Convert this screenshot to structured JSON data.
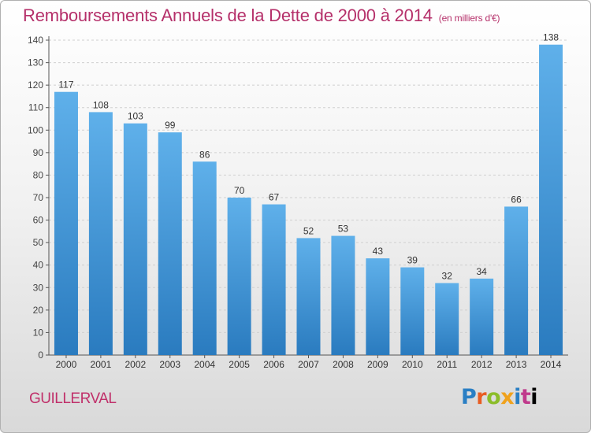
{
  "header": {
    "title": "Remboursements Annuels de la Dette de 2000 à 2014",
    "subtitle": "(en milliers d'€)"
  },
  "footer": {
    "commune": "GUILLERVAL",
    "logo_letters": [
      "P",
      "r",
      "o",
      "x",
      "i",
      "t",
      "i"
    ]
  },
  "colors": {
    "bar_top": "#5fb0ea",
    "bar_bottom": "#2a7bbf",
    "title": "#b5306a",
    "axis": "#555555",
    "grid": "#d0d0d0"
  },
  "chart_data": {
    "type": "bar",
    "title": "Remboursements Annuels de la Dette de 2000 à 2014",
    "subtitle": "(en milliers d'€)",
    "xlabel": "",
    "ylabel": "",
    "categories": [
      "2000",
      "2001",
      "2002",
      "2003",
      "2004",
      "2005",
      "2006",
      "2007",
      "2008",
      "2009",
      "2010",
      "2011",
      "2012",
      "2013",
      "2014"
    ],
    "values": [
      117,
      108,
      103,
      99,
      86,
      70,
      67,
      52,
      53,
      43,
      39,
      32,
      34,
      66,
      138
    ],
    "ylim": [
      0,
      140
    ],
    "y_ticks": [
      0,
      10,
      20,
      30,
      40,
      50,
      60,
      70,
      80,
      90,
      100,
      110,
      120,
      130,
      140
    ],
    "grid": true
  }
}
